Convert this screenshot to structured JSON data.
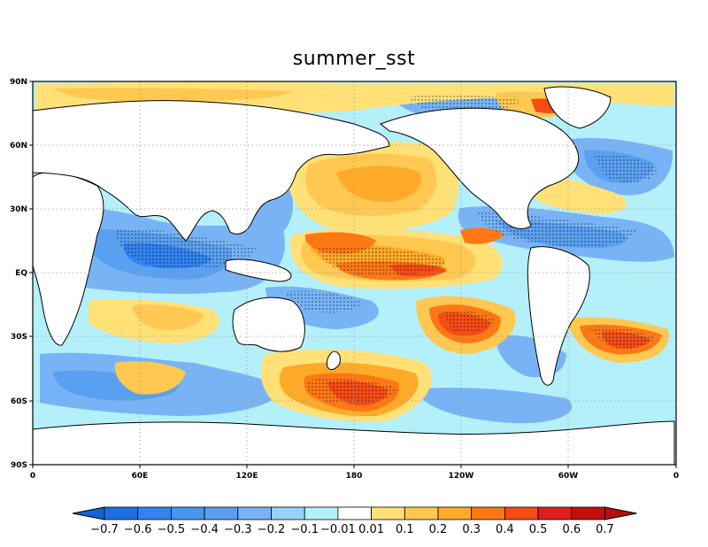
{
  "title": "summer_sst",
  "lat_labels": [
    "90N",
    "60N",
    "30N",
    "EQ",
    "30S",
    "60S",
    "90S"
  ],
  "lon_labels": [
    "0",
    "60E",
    "120E",
    "180",
    "120W",
    "60W",
    "0"
  ],
  "colorbar": {
    "labels": [
      "−0.7",
      "−0.6",
      "−0.5",
      "−0.4",
      "−0.3",
      "−0.2",
      "−0.1",
      "−0.01",
      "0.01",
      "0.1",
      "0.2",
      "0.3",
      "0.4",
      "0.5",
      "0.6",
      "0.7"
    ],
    "low_extend_color": "#1464d2",
    "high_extend_color": "#b40f0f",
    "colors": [
      "#1e6ee6",
      "#3282f0",
      "#4696f0",
      "#5aa0f0",
      "#78b4f5",
      "#96d2fa",
      "#b4f0fa",
      "#ffffff",
      "#ffe178",
      "#ffc850",
      "#ffaa28",
      "#ff7814",
      "#f54b14",
      "#e11e1e",
      "#c30f0f"
    ]
  },
  "map": {
    "projection": "cylindrical-equidistant",
    "center_longitude": 180,
    "land_color": "#ffffff",
    "coastline_color": "#000000",
    "grid": "dotted"
  }
}
